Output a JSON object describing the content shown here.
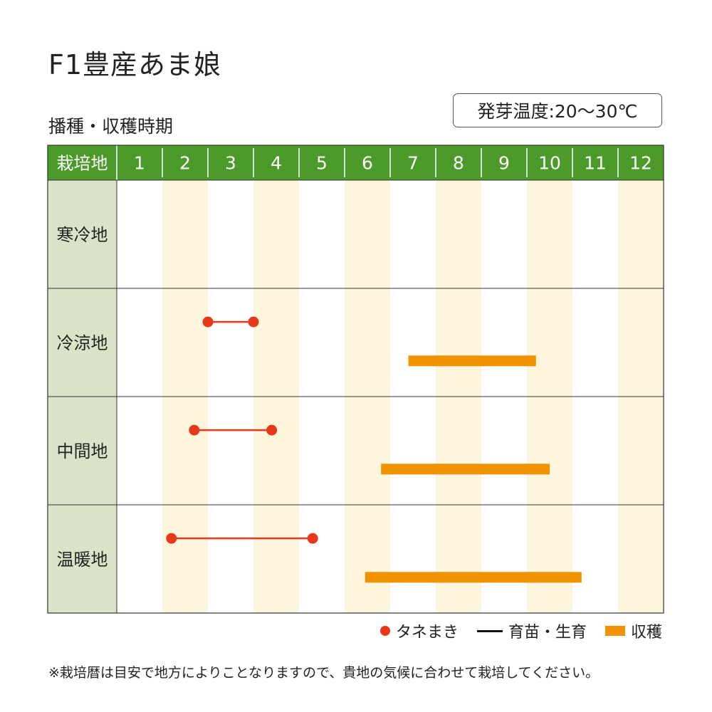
{
  "title": "F1豊産あま娘",
  "subtitle": "播種・収穫時期",
  "germination_temp": "発芽温度:20～30℃",
  "note": "※栽培暦は目安で地方によりことなりますので、貴地の気候に合わせて栽培してください。",
  "legend": {
    "sowing": "タネまき",
    "seedling": "育苗・生育",
    "harvest": "収穫"
  },
  "colors": {
    "header_green": "#4c9a2a",
    "row_label_bg": "#d9e3c8",
    "stripe": "#fdf5dc",
    "sowing_red": "#e8381b",
    "harvest_orange": "#f39200"
  },
  "chart_data": {
    "type": "table",
    "header_label": "栽培地",
    "months": [
      "1",
      "2",
      "3",
      "4",
      "5",
      "6",
      "7",
      "8",
      "9",
      "10",
      "11",
      "12"
    ],
    "regions": [
      {
        "name": "寒冷地",
        "sowing": null,
        "harvest": null
      },
      {
        "name": "冷涼地",
        "sowing": [
          3.0,
          4.0
        ],
        "harvest": [
          7.4,
          10.2
        ]
      },
      {
        "name": "中間地",
        "sowing": [
          2.7,
          4.4
        ],
        "harvest": [
          6.8,
          10.5
        ]
      },
      {
        "name": "温暖地",
        "sowing": [
          2.2,
          5.3
        ],
        "harvest": [
          6.45,
          11.2
        ]
      }
    ]
  }
}
